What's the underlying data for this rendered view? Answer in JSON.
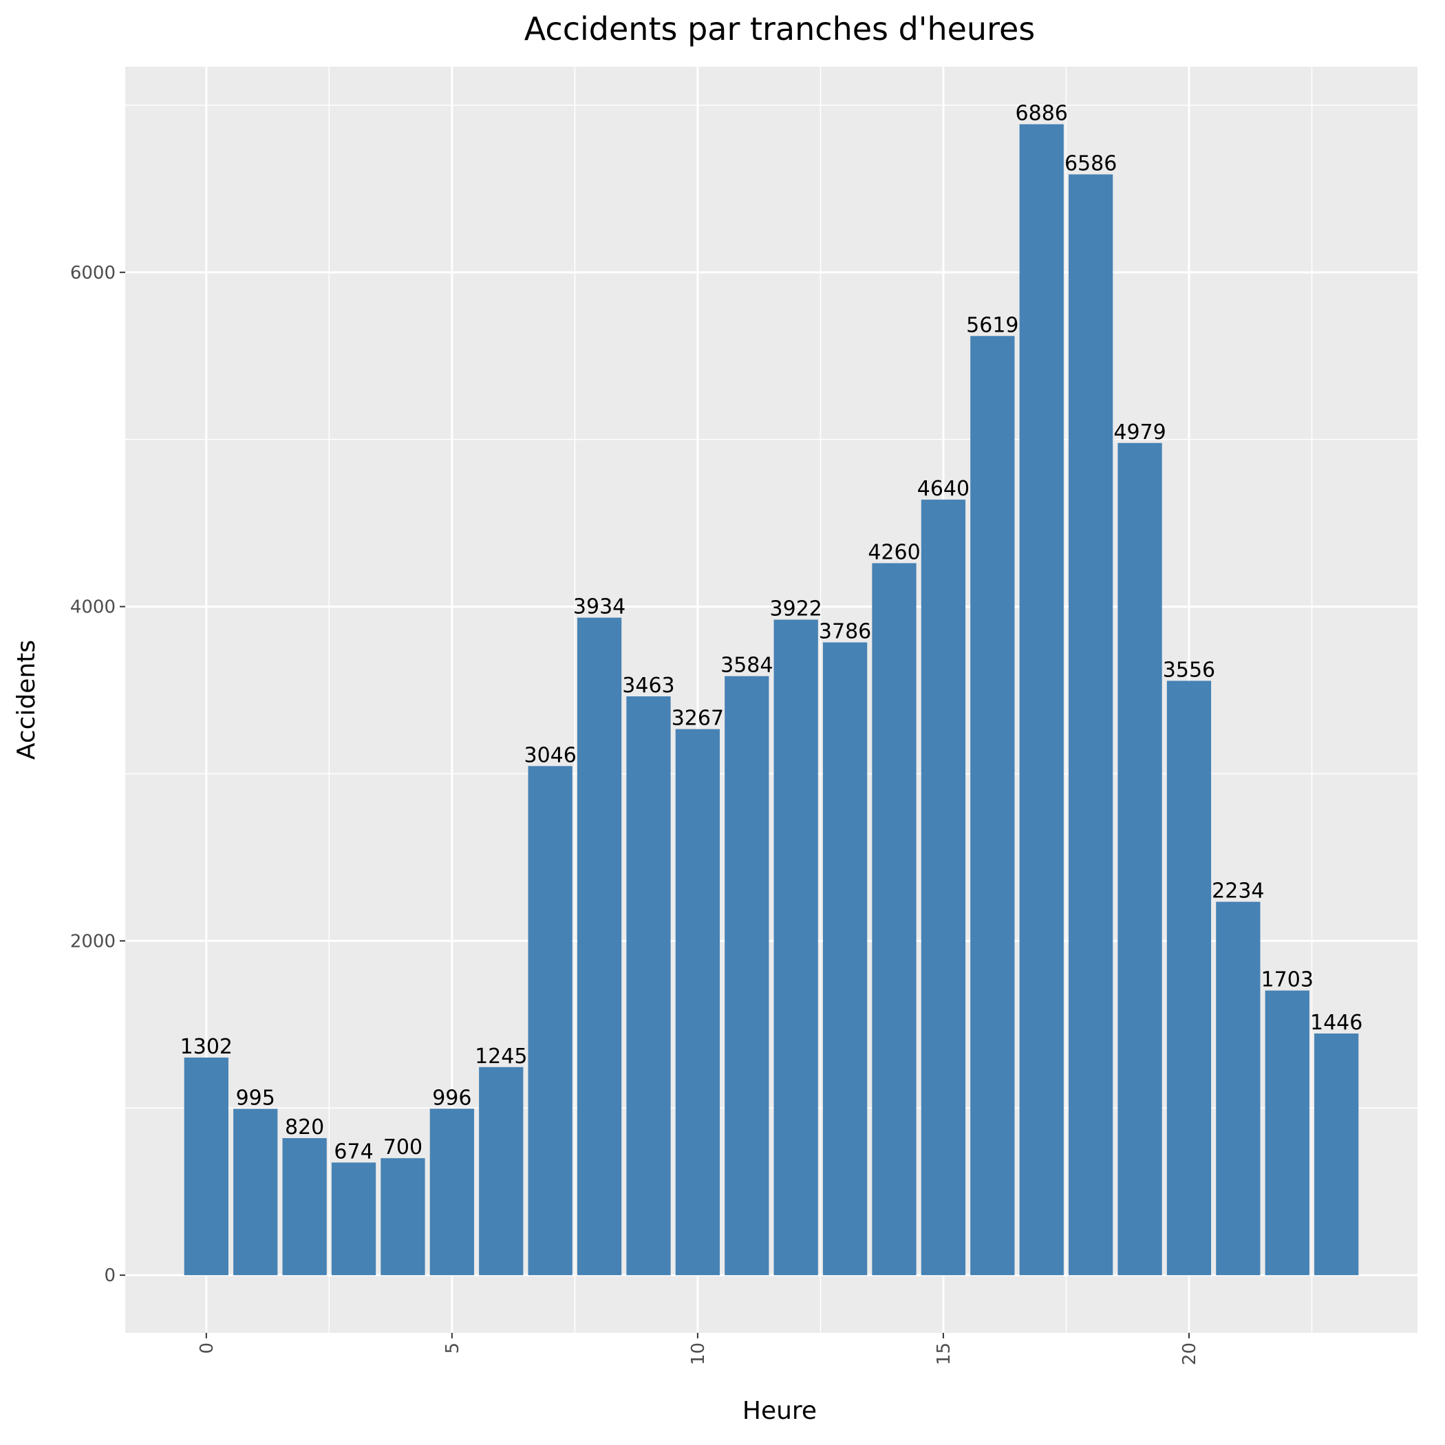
{
  "chart_data": {
    "type": "bar",
    "title": "Accidents par tranches d'heures",
    "xlabel": "Heure",
    "ylabel": "Accidents",
    "x": [
      0,
      1,
      2,
      3,
      4,
      5,
      6,
      7,
      8,
      9,
      10,
      11,
      12,
      13,
      14,
      15,
      16,
      17,
      18,
      19,
      20,
      21,
      22,
      23
    ],
    "values": [
      1302,
      995,
      820,
      674,
      700,
      996,
      1245,
      3046,
      3934,
      3463,
      3267,
      3584,
      3922,
      3786,
      4260,
      4640,
      5619,
      6886,
      6586,
      4979,
      3556,
      2234,
      1703,
      1446
    ],
    "x_ticks": [
      0,
      5,
      10,
      15,
      20
    ],
    "y_ticks": [
      0,
      2000,
      4000,
      6000
    ],
    "xlim": [
      -1.65,
      24.65
    ],
    "ylim": [
      -345,
      7230
    ],
    "bar_color": "#4682b4",
    "panel_color": "#ebebeb",
    "grid_color": "#ffffff",
    "grid": true,
    "legend": "none"
  }
}
